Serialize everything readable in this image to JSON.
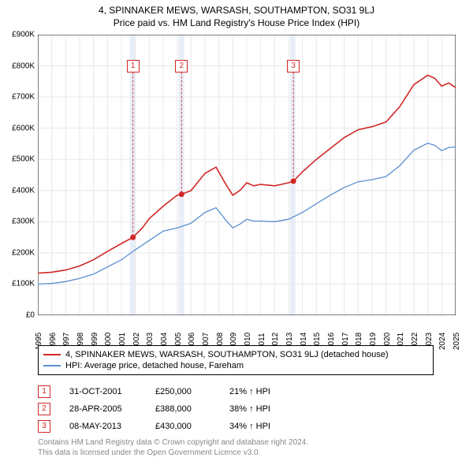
{
  "title": "4, SPINNAKER MEWS, WARSASH, SOUTHAMPTON, SO31 9LJ",
  "subtitle": "Price paid vs. HM Land Registry's House Price Index (HPI)",
  "chart": {
    "type": "line",
    "background_color": "#ffffff",
    "grid_color": "#e8e8e8",
    "x_axis": {
      "min": 1995,
      "max": 2025,
      "tick_step": 1,
      "labels": [
        "1995",
        "1996",
        "1997",
        "1998",
        "1999",
        "2000",
        "2001",
        "2002",
        "2003",
        "2004",
        "2005",
        "2006",
        "2007",
        "2008",
        "2009",
        "2010",
        "2011",
        "2012",
        "2013",
        "2014",
        "2015",
        "2016",
        "2017",
        "2018",
        "2019",
        "2020",
        "2021",
        "2022",
        "2023",
        "2024",
        "2025"
      ],
      "label_fontsize": 10
    },
    "y_axis": {
      "min": 0,
      "max": 900000,
      "tick_step": 100000,
      "labels": [
        "£0",
        "£100K",
        "£200K",
        "£300K",
        "£400K",
        "£500K",
        "£600K",
        "£700K",
        "£800K",
        "£900K"
      ],
      "label_fontsize": 10
    },
    "highlight_bands": {
      "color": "#e8eef7",
      "ranges": [
        {
          "start": 2001.6,
          "end": 2002.0
        },
        {
          "start": 2005.1,
          "end": 2005.5
        },
        {
          "start": 2013.1,
          "end": 2013.5
        }
      ]
    },
    "series": [
      {
        "name": "price_paid",
        "label": "4, SPINNAKER MEWS, WARSASH, SOUTHAMPTON, SO31 9LJ (detached house)",
        "color": "#d12727",
        "line_width": 1.6,
        "points": [
          [
            1995,
            135000
          ],
          [
            1996,
            138000
          ],
          [
            1997,
            145000
          ],
          [
            1998,
            158000
          ],
          [
            1999,
            178000
          ],
          [
            2000,
            205000
          ],
          [
            2001,
            230000
          ],
          [
            2001.83,
            250000
          ],
          [
            2002.5,
            280000
          ],
          [
            2003,
            310000
          ],
          [
            2004,
            350000
          ],
          [
            2005,
            385000
          ],
          [
            2005.32,
            388000
          ],
          [
            2006,
            400000
          ],
          [
            2007,
            455000
          ],
          [
            2007.8,
            475000
          ],
          [
            2008.5,
            420000
          ],
          [
            2009,
            385000
          ],
          [
            2009.5,
            400000
          ],
          [
            2010,
            425000
          ],
          [
            2010.5,
            415000
          ],
          [
            2011,
            420000
          ],
          [
            2012,
            415000
          ],
          [
            2013,
            425000
          ],
          [
            2013.35,
            430000
          ],
          [
            2014,
            460000
          ],
          [
            2015,
            500000
          ],
          [
            2016,
            535000
          ],
          [
            2017,
            570000
          ],
          [
            2018,
            595000
          ],
          [
            2019,
            605000
          ],
          [
            2020,
            620000
          ],
          [
            2021,
            670000
          ],
          [
            2022,
            740000
          ],
          [
            2023,
            770000
          ],
          [
            2023.5,
            760000
          ],
          [
            2024,
            735000
          ],
          [
            2024.5,
            745000
          ],
          [
            2025,
            730000
          ]
        ]
      },
      {
        "name": "hpi",
        "label": "HPI: Average price, detached house, Fareham",
        "color": "#5a8fd0",
        "line_width": 1.3,
        "points": [
          [
            1995,
            100000
          ],
          [
            1996,
            102000
          ],
          [
            1997,
            108000
          ],
          [
            1998,
            118000
          ],
          [
            1999,
            132000
          ],
          [
            2000,
            155000
          ],
          [
            2001,
            178000
          ],
          [
            2002,
            210000
          ],
          [
            2003,
            240000
          ],
          [
            2004,
            270000
          ],
          [
            2005,
            280000
          ],
          [
            2006,
            295000
          ],
          [
            2007,
            330000
          ],
          [
            2007.8,
            345000
          ],
          [
            2008.5,
            305000
          ],
          [
            2009,
            280000
          ],
          [
            2009.5,
            292000
          ],
          [
            2010,
            308000
          ],
          [
            2010.5,
            302000
          ],
          [
            2011,
            302000
          ],
          [
            2012,
            300000
          ],
          [
            2013,
            308000
          ],
          [
            2014,
            330000
          ],
          [
            2015,
            358000
          ],
          [
            2016,
            385000
          ],
          [
            2017,
            410000
          ],
          [
            2018,
            428000
          ],
          [
            2019,
            435000
          ],
          [
            2020,
            445000
          ],
          [
            2021,
            480000
          ],
          [
            2022,
            530000
          ],
          [
            2023,
            552000
          ],
          [
            2023.5,
            545000
          ],
          [
            2024,
            528000
          ],
          [
            2024.5,
            538000
          ],
          [
            2025,
            540000
          ]
        ]
      }
    ],
    "sale_markers": [
      {
        "num": "1",
        "year": 2001.83,
        "value": 250000,
        "box_top_y": 820000
      },
      {
        "num": "2",
        "year": 2005.32,
        "value": 388000,
        "box_top_y": 820000
      },
      {
        "num": "3",
        "year": 2013.35,
        "value": 430000,
        "box_top_y": 820000
      }
    ],
    "dot_radius": 3.5,
    "dot_color": "#d12727"
  },
  "legend": {
    "items": [
      {
        "color": "#d12727",
        "label": "4, SPINNAKER MEWS, WARSASH, SOUTHAMPTON, SO31 9LJ (detached house)"
      },
      {
        "color": "#5a8fd0",
        "label": "HPI: Average price, detached house, Fareham"
      }
    ]
  },
  "sales": [
    {
      "num": "1",
      "date": "31-OCT-2001",
      "price": "£250,000",
      "pct": "21% ↑ HPI"
    },
    {
      "num": "2",
      "date": "28-APR-2005",
      "price": "£388,000",
      "pct": "38% ↑ HPI"
    },
    {
      "num": "3",
      "date": "08-MAY-2013",
      "price": "£430,000",
      "pct": "34% ↑ HPI"
    }
  ],
  "footer_line1": "Contains HM Land Registry data © Crown copyright and database right 2024.",
  "footer_line2": "This data is licensed under the Open Government Licence v3.0."
}
